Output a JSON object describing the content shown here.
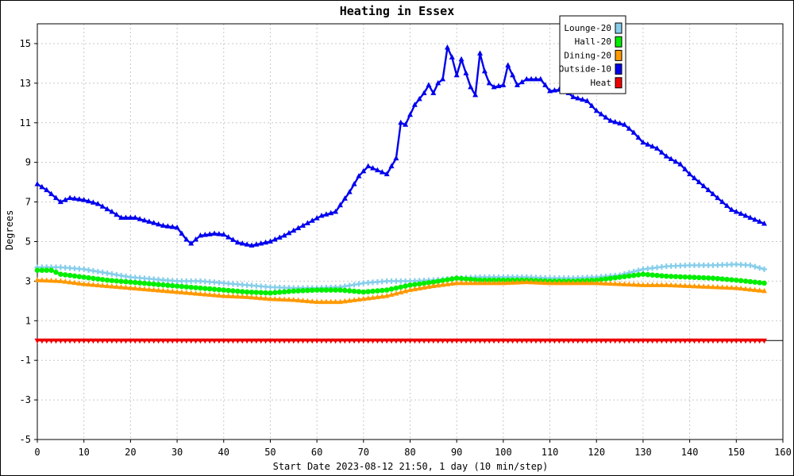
{
  "chart_data": {
    "type": "line",
    "title": "Heating in Essex",
    "xlabel": "Start Date 2023-08-12 21:50, 1 day (10 min/step)",
    "ylabel": "Degrees",
    "xlim": [
      0,
      160
    ],
    "ylim": [
      -5,
      16
    ],
    "xticks": [
      0,
      10,
      20,
      30,
      40,
      50,
      60,
      70,
      80,
      90,
      100,
      110,
      120,
      130,
      140,
      150,
      160
    ],
    "yticks": [
      -5,
      -3,
      -1,
      1,
      3,
      5,
      7,
      9,
      11,
      13,
      15
    ],
    "grid": true,
    "legend_position": "top-right",
    "series": [
      {
        "name": "Lounge-20",
        "color": "#87ceeb",
        "marker": "cross",
        "points": [
          [
            0,
            3.7
          ],
          [
            5,
            3.7
          ],
          [
            10,
            3.6
          ],
          [
            15,
            3.4
          ],
          [
            20,
            3.2
          ],
          [
            25,
            3.1
          ],
          [
            30,
            3.0
          ],
          [
            35,
            3.0
          ],
          [
            40,
            2.9
          ],
          [
            45,
            2.8
          ],
          [
            50,
            2.7
          ],
          [
            55,
            2.65
          ],
          [
            60,
            2.65
          ],
          [
            65,
            2.7
          ],
          [
            70,
            2.9
          ],
          [
            75,
            3.0
          ],
          [
            80,
            3.0
          ],
          [
            85,
            3.05
          ],
          [
            90,
            3.15
          ],
          [
            95,
            3.2
          ],
          [
            100,
            3.2
          ],
          [
            105,
            3.2
          ],
          [
            110,
            3.15
          ],
          [
            115,
            3.15
          ],
          [
            120,
            3.2
          ],
          [
            125,
            3.3
          ],
          [
            130,
            3.6
          ],
          [
            135,
            3.75
          ],
          [
            140,
            3.8
          ],
          [
            145,
            3.8
          ],
          [
            150,
            3.85
          ],
          [
            153,
            3.8
          ],
          [
            156,
            3.6
          ]
        ]
      },
      {
        "name": "Hall-20",
        "color": "#00ee00",
        "marker": "circle",
        "points": [
          [
            0,
            3.55
          ],
          [
            3,
            3.55
          ],
          [
            5,
            3.35
          ],
          [
            10,
            3.2
          ],
          [
            15,
            3.05
          ],
          [
            20,
            2.95
          ],
          [
            25,
            2.85
          ],
          [
            30,
            2.75
          ],
          [
            35,
            2.65
          ],
          [
            40,
            2.55
          ],
          [
            45,
            2.45
          ],
          [
            50,
            2.4
          ],
          [
            55,
            2.5
          ],
          [
            60,
            2.55
          ],
          [
            65,
            2.55
          ],
          [
            70,
            2.45
          ],
          [
            75,
            2.55
          ],
          [
            80,
            2.8
          ],
          [
            85,
            2.95
          ],
          [
            90,
            3.15
          ],
          [
            95,
            3.05
          ],
          [
            100,
            3.05
          ],
          [
            105,
            3.05
          ],
          [
            110,
            3.0
          ],
          [
            115,
            3.0
          ],
          [
            120,
            3.05
          ],
          [
            125,
            3.2
          ],
          [
            130,
            3.35
          ],
          [
            135,
            3.25
          ],
          [
            140,
            3.2
          ],
          [
            145,
            3.15
          ],
          [
            150,
            3.05
          ],
          [
            156,
            2.9
          ]
        ]
      },
      {
        "name": "Dining-20",
        "color": "#ff9900",
        "marker": "triangle",
        "points": [
          [
            0,
            3.05
          ],
          [
            5,
            3.0
          ],
          [
            10,
            2.85
          ],
          [
            15,
            2.75
          ],
          [
            20,
            2.65
          ],
          [
            25,
            2.55
          ],
          [
            30,
            2.45
          ],
          [
            35,
            2.35
          ],
          [
            40,
            2.25
          ],
          [
            45,
            2.2
          ],
          [
            50,
            2.1
          ],
          [
            55,
            2.05
          ],
          [
            60,
            1.95
          ],
          [
            65,
            1.95
          ],
          [
            70,
            2.1
          ],
          [
            75,
            2.25
          ],
          [
            80,
            2.55
          ],
          [
            85,
            2.75
          ],
          [
            90,
            2.9
          ],
          [
            95,
            2.9
          ],
          [
            100,
            2.9
          ],
          [
            105,
            2.95
          ],
          [
            110,
            2.9
          ],
          [
            115,
            2.9
          ],
          [
            120,
            2.9
          ],
          [
            125,
            2.85
          ],
          [
            130,
            2.8
          ],
          [
            135,
            2.8
          ],
          [
            140,
            2.75
          ],
          [
            145,
            2.7
          ],
          [
            150,
            2.65
          ],
          [
            156,
            2.5
          ]
        ]
      },
      {
        "name": "Outside-10",
        "color": "#0000ee",
        "marker": "triangle",
        "points": [
          [
            0,
            7.9
          ],
          [
            2,
            7.6
          ],
          [
            4,
            7.2
          ],
          [
            5,
            7.0
          ],
          [
            7,
            7.2
          ],
          [
            10,
            7.1
          ],
          [
            13,
            6.9
          ],
          [
            16,
            6.5
          ],
          [
            18,
            6.2
          ],
          [
            21,
            6.2
          ],
          [
            24,
            6.0
          ],
          [
            27,
            5.8
          ],
          [
            30,
            5.7
          ],
          [
            32,
            5.1
          ],
          [
            33,
            4.9
          ],
          [
            35,
            5.3
          ],
          [
            38,
            5.4
          ],
          [
            40,
            5.35
          ],
          [
            43,
            4.95
          ],
          [
            46,
            4.8
          ],
          [
            50,
            5.0
          ],
          [
            53,
            5.3
          ],
          [
            57,
            5.8
          ],
          [
            61,
            6.3
          ],
          [
            64,
            6.5
          ],
          [
            67,
            7.5
          ],
          [
            69,
            8.3
          ],
          [
            71,
            8.8
          ],
          [
            73,
            8.6
          ],
          [
            75,
            8.4
          ],
          [
            77,
            9.2
          ],
          [
            78,
            11.0
          ],
          [
            79,
            10.9
          ],
          [
            81,
            11.9
          ],
          [
            83,
            12.5
          ],
          [
            84,
            12.9
          ],
          [
            85,
            12.5
          ],
          [
            86,
            13.0
          ],
          [
            87,
            13.2
          ],
          [
            88,
            14.8
          ],
          [
            89,
            14.3
          ],
          [
            90,
            13.4
          ],
          [
            91,
            14.2
          ],
          [
            92,
            13.5
          ],
          [
            93,
            12.8
          ],
          [
            94,
            12.4
          ],
          [
            95,
            14.5
          ],
          [
            96,
            13.6
          ],
          [
            97,
            13.0
          ],
          [
            98,
            12.8
          ],
          [
            100,
            12.9
          ],
          [
            101,
            13.9
          ],
          [
            103,
            12.9
          ],
          [
            105,
            13.2
          ],
          [
            108,
            13.2
          ],
          [
            110,
            12.6
          ],
          [
            113,
            12.7
          ],
          [
            115,
            12.3
          ],
          [
            118,
            12.1
          ],
          [
            120,
            11.6
          ],
          [
            123,
            11.1
          ],
          [
            126,
            10.9
          ],
          [
            128,
            10.5
          ],
          [
            130,
            10.0
          ],
          [
            133,
            9.7
          ],
          [
            135,
            9.3
          ],
          [
            138,
            8.9
          ],
          [
            140,
            8.4
          ],
          [
            143,
            7.8
          ],
          [
            146,
            7.2
          ],
          [
            149,
            6.6
          ],
          [
            152,
            6.3
          ],
          [
            154,
            6.1
          ],
          [
            156,
            5.9
          ]
        ]
      },
      {
        "name": "Heat",
        "color": "#ee0000",
        "marker": "triangle-down",
        "points": [
          [
            0,
            0
          ],
          [
            156,
            0
          ]
        ]
      }
    ]
  }
}
